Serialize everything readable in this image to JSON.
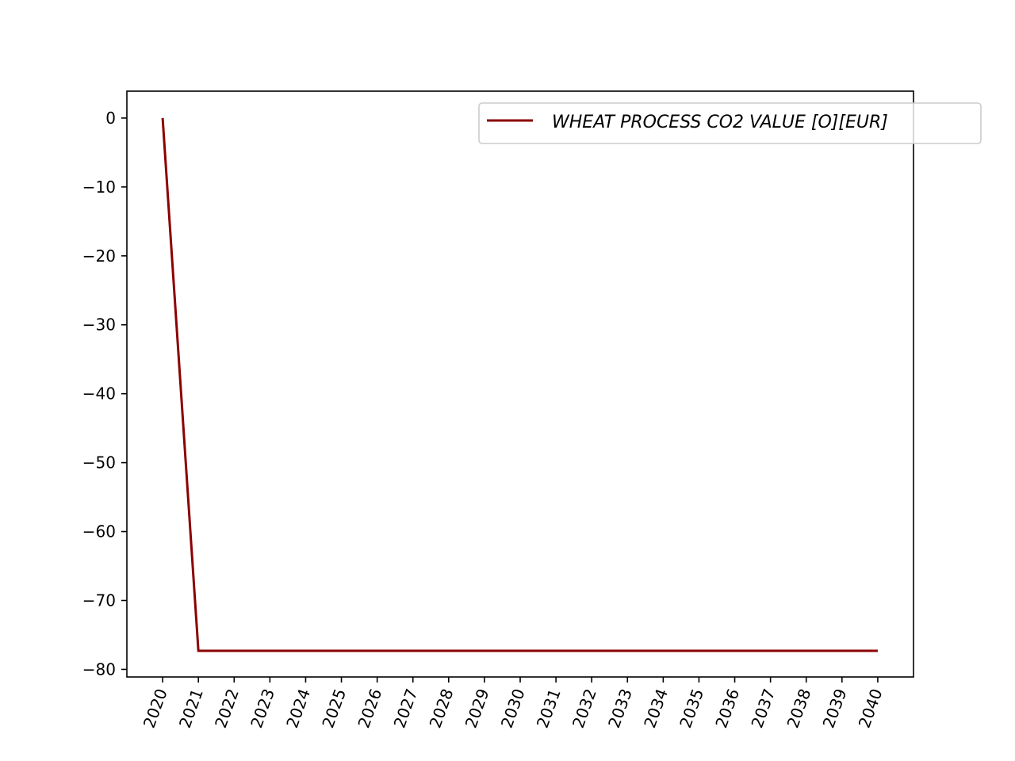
{
  "chart_data": {
    "type": "line",
    "title": "",
    "xlabel": "",
    "ylabel": "",
    "x": [
      2020,
      2021,
      2022,
      2023,
      2024,
      2025,
      2026,
      2027,
      2028,
      2029,
      2030,
      2031,
      2032,
      2033,
      2034,
      2035,
      2036,
      2037,
      2038,
      2039,
      2040
    ],
    "x_tick_labels": [
      "2020",
      "2021",
      "2022",
      "2023",
      "2024",
      "2025",
      "2026",
      "2027",
      "2028",
      "2029",
      "2030",
      "2031",
      "2032",
      "2033",
      "2034",
      "2035",
      "2036",
      "2037",
      "2038",
      "2039",
      "2040"
    ],
    "y_ticks": [
      0,
      -10,
      -20,
      -30,
      -40,
      -50,
      -60,
      -70,
      -80
    ],
    "y_tick_labels": [
      "0",
      "−10",
      "−20",
      "−30",
      "−40",
      "−50",
      "−60",
      "−70",
      "−80"
    ],
    "xlim": [
      2019,
      2041
    ],
    "ylim": [
      -81.1,
      3.9
    ],
    "grid": false,
    "legend_position": "top-right",
    "series": [
      {
        "name": "WHEAT PROCESS CO2 VALUE [O][EUR]",
        "color": "#8b0000",
        "values": [
          0,
          -77.3,
          -77.3,
          -77.3,
          -77.3,
          -77.3,
          -77.3,
          -77.3,
          -77.3,
          -77.3,
          -77.3,
          -77.3,
          -77.3,
          -77.3,
          -77.3,
          -77.3,
          -77.3,
          -77.3,
          -77.3,
          -77.3,
          -77.3
        ]
      }
    ]
  }
}
